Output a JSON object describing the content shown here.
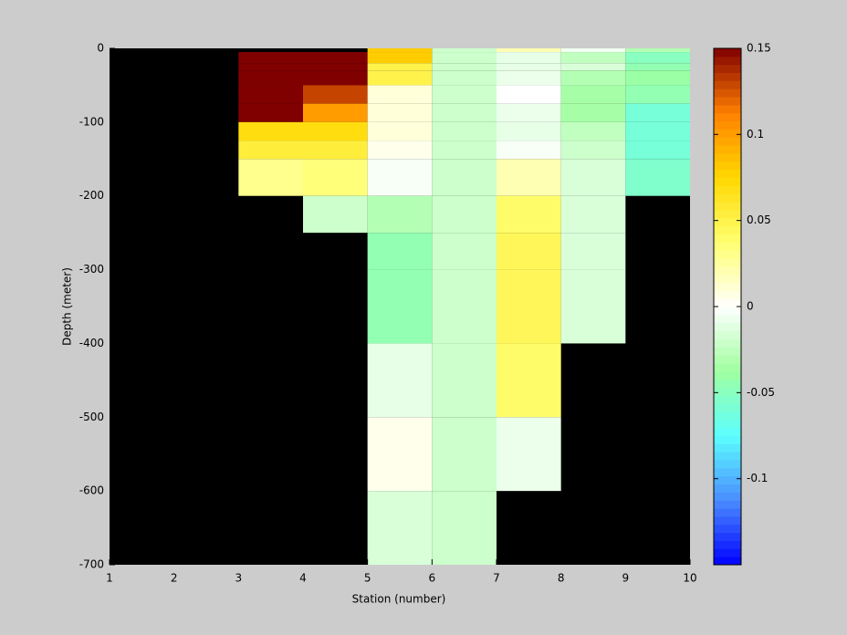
{
  "chart_data": {
    "type": "heatmap",
    "xlabel": "Station (number)",
    "ylabel": "Depth (meter)",
    "x": [
      1,
      2,
      3,
      4,
      5,
      6,
      7,
      8,
      9,
      10
    ],
    "y": [
      0,
      -5,
      -20,
      -30,
      -50,
      -75,
      -100,
      -125,
      -150,
      -200,
      -250,
      -300,
      -350,
      -400,
      -500,
      -600,
      -700
    ],
    "values": [
      [
        null,
        null,
        null,
        null,
        null,
        null,
        null,
        null,
        null,
        null,
        null,
        null,
        null,
        null,
        null,
        null
      ],
      [
        null,
        null,
        null,
        null,
        null,
        null,
        null,
        null,
        null,
        null,
        null,
        null,
        null,
        null,
        null,
        null
      ],
      [
        null,
        0.15,
        0.15,
        0.15,
        0.15,
        0.15,
        0.07,
        0.055,
        0.03,
        null,
        null,
        null,
        null,
        null,
        null,
        null
      ],
      [
        null,
        0.15,
        0.15,
        0.15,
        0.13,
        0.1,
        0.07,
        0.055,
        0.035,
        -0.02,
        null,
        null,
        null,
        null,
        null,
        null
      ],
      [
        0.08,
        0.08,
        0.05,
        0.05,
        0.01,
        0.01,
        0.01,
        0.005,
        -0.003,
        -0.03,
        -0.045,
        -0.045,
        -0.045,
        -0.01,
        0.005,
        -0.015
      ],
      [
        -0.02,
        -0.02,
        -0.02,
        -0.02,
        -0.02,
        -0.02,
        -0.02,
        -0.02,
        -0.02,
        -0.02,
        -0.02,
        -0.02,
        -0.02,
        -0.02,
        -0.02,
        -0.02
      ],
      [
        0.02,
        -0.01,
        -0.01,
        -0.008,
        0,
        -0.008,
        -0.01,
        -0.003,
        0.02,
        0.04,
        0.045,
        0.045,
        0.045,
        0.04,
        -0.008,
        null
      ],
      [
        -0.005,
        -0.025,
        -0.015,
        -0.03,
        -0.035,
        -0.035,
        -0.025,
        -0.02,
        -0.015,
        -0.015,
        -0.015,
        -0.015,
        -0.015,
        null,
        null,
        null
      ],
      [
        -0.03,
        -0.05,
        -0.045,
        -0.04,
        -0.045,
        -0.06,
        -0.06,
        -0.06,
        -0.055,
        null,
        null,
        null,
        null,
        null,
        null,
        null
      ]
    ],
    "xlim": [
      1,
      10
    ],
    "xticks": [
      1,
      2,
      3,
      4,
      5,
      6,
      7,
      8,
      9,
      10
    ],
    "ylim": [
      -700,
      0
    ],
    "yticks": [
      0,
      -100,
      -200,
      -300,
      -400,
      -500,
      -600,
      -700
    ],
    "clim": [
      -0.15,
      0.15
    ],
    "cticks": [
      0.15,
      0.1,
      0.05,
      0,
      -0.05,
      -0.1
    ],
    "colormap": [
      "#0000ff",
      "#4a8cff",
      "#5cffff",
      "#a0ffa0",
      "#ffffff",
      "#ffff70",
      "#ffd800",
      "#ff8000",
      "#800000"
    ],
    "background": "#000000"
  }
}
